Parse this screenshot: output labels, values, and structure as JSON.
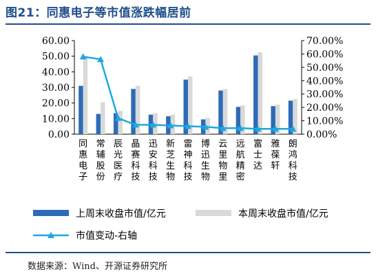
{
  "header": {
    "title": "图21：同惠电子等市值涨跌幅居前"
  },
  "source": "数据来源：Wind、开源证券研究所",
  "chart_data": {
    "type": "bar",
    "categories": [
      "同惠电子",
      "常辅股份",
      "辰光医疗",
      "晶赛科技",
      "迅安科技",
      "新芝生物",
      "雷神科技",
      "博迅生物",
      "云里物里",
      "远航精密",
      "富士达",
      "雅葆轩",
      "朗鸿科技"
    ],
    "series": [
      {
        "name": "上周末收盘市值/亿元",
        "type": "bar",
        "axis": "left",
        "color": "#2e6bb6",
        "values": [
          31.0,
          13.0,
          13.5,
          29.0,
          12.5,
          11.5,
          35.0,
          9.5,
          28.0,
          17.5,
          50.5,
          18.0,
          21.5
        ]
      },
      {
        "name": "本周末收盘市值/亿元",
        "type": "bar",
        "axis": "left",
        "color": "#d9d9d9",
        "values": [
          49.0,
          20.5,
          15.0,
          31.0,
          13.5,
          12.5,
          37.0,
          10.5,
          29.0,
          18.5,
          52.5,
          19.0,
          22.5
        ]
      },
      {
        "name": "市值变动-右轴",
        "type": "line",
        "axis": "right",
        "color": "#1ea7e0",
        "values": [
          0.58,
          0.56,
          0.12,
          0.07,
          0.07,
          0.065,
          0.06,
          0.055,
          0.045,
          0.045,
          0.04,
          0.04,
          0.04
        ]
      }
    ],
    "y_left": {
      "ticks": [
        "60.00",
        "50.00",
        "40.00",
        "30.00",
        "20.00",
        "10.00",
        "0.00"
      ],
      "min": 0,
      "max": 60
    },
    "y_right": {
      "ticks": [
        "70.00%",
        "60.00%",
        "50.00%",
        "40.00%",
        "30.00%",
        "20.00%",
        "10.00%",
        "0.00%"
      ],
      "min": 0,
      "max": 0.7
    },
    "grid": false,
    "legend": "bottom"
  }
}
